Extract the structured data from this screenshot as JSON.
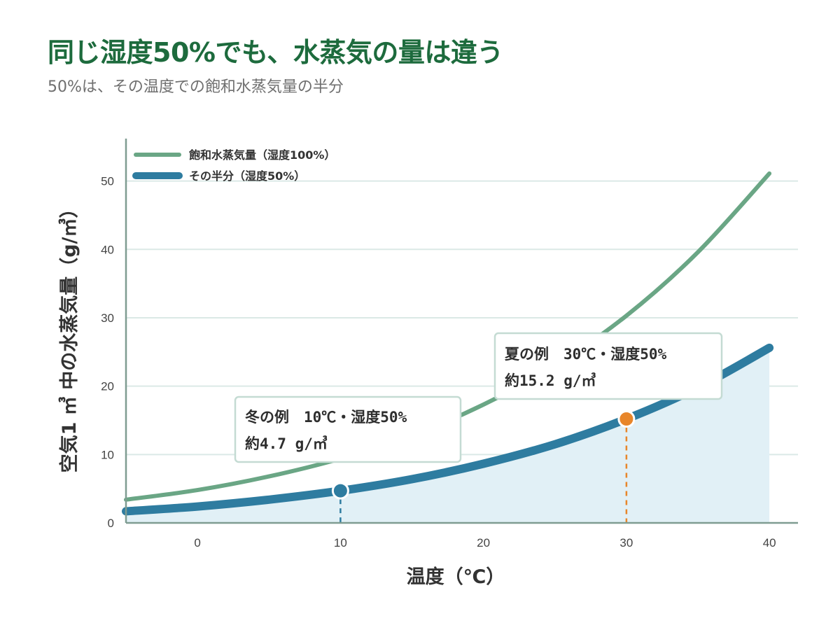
{
  "header": {
    "title": "同じ湿度50%でも、水蒸気の量は違う",
    "subtitle": "50%は、その温度での飽和水蒸気量の半分"
  },
  "colors": {
    "saturated": "#6aa685",
    "half": "#2e7ca0",
    "fill": "#e1f0f6",
    "summer_dot": "#e8862a",
    "grid": "#dbe9e6",
    "axis": "#7f9c91",
    "title": "#1d6b3d"
  },
  "chart_data": {
    "type": "line",
    "title": "同じ湿度50%でも、水蒸気の量は違う",
    "subtitle": "50%は、その温度での飽和水蒸気量の半分",
    "xlabel": "温度（℃）",
    "ylabel": "空気1 ㎥ 中の水蒸気量（g/㎥）",
    "xlim": [
      -5,
      42
    ],
    "ylim": [
      0,
      56
    ],
    "x_ticks": [
      0,
      10,
      20,
      30,
      40
    ],
    "y_ticks": [
      0,
      10,
      20,
      30,
      40,
      50
    ],
    "grid": "horizontal",
    "legend_position": "top-left",
    "x": [
      -5,
      0,
      5,
      10,
      15,
      20,
      25,
      30,
      35,
      40
    ],
    "series": [
      {
        "name": "飽和水蒸気量（湿度100%）",
        "values": [
          3.4,
          4.8,
          6.8,
          9.4,
          12.8,
          17.3,
          23.0,
          30.3,
          39.6,
          51.1
        ]
      },
      {
        "name": "その半分（湿度50%）",
        "values": [
          1.7,
          2.4,
          3.4,
          4.7,
          6.4,
          8.65,
          11.5,
          15.2,
          19.8,
          25.6
        ],
        "filled": true
      }
    ],
    "annotations": [
      {
        "x": 10,
        "y": 4.7,
        "line1": "冬の例　10℃・湿度50%",
        "line2": "約4.7 g/㎥",
        "marker": "winter"
      },
      {
        "x": 30,
        "y": 15.2,
        "line1": "夏の例　30℃・湿度50%",
        "line2": "約15.2 g/㎥",
        "marker": "summer"
      }
    ]
  }
}
